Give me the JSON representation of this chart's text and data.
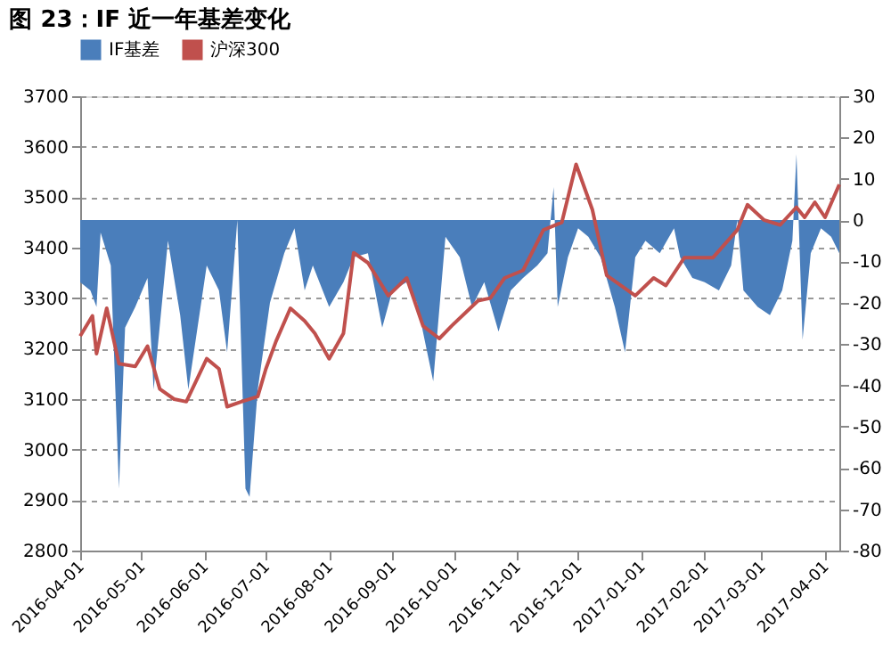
{
  "chart_data": {
    "type": "line",
    "title": "图 23：IF 近一年基差变化",
    "legend": "top",
    "grid": "y",
    "xlim": [
      "2016-04-01",
      "2017-04-08"
    ],
    "xticks": [
      "2016-04-01",
      "2016-05-01",
      "2016-06-01",
      "2016-07-01",
      "2016-08-01",
      "2016-09-01",
      "2016-10-01",
      "2016-11-01",
      "2016-12-01",
      "2017-01-01",
      "2017-02-01",
      "2017-03-01",
      "2017-04-01"
    ],
    "ylim": [
      2800,
      3700
    ],
    "yticks": [
      2800,
      2900,
      3000,
      3100,
      3200,
      3300,
      3400,
      3500,
      3600,
      3700
    ],
    "y2lim": [
      -80,
      30
    ],
    "y2ticks": [
      -80,
      -70,
      -60,
      -50,
      -40,
      -30,
      -20,
      -10,
      0,
      10,
      20,
      30
    ],
    "series": [
      {
        "name": "IF基差",
        "type": "area",
        "axis": "y2",
        "color": "#4a7ebb",
        "x": [
          "2016-04-01",
          "2016-04-06",
          "2016-04-09",
          "2016-04-11",
          "2016-04-16",
          "2016-04-20",
          "2016-04-23",
          "2016-04-28",
          "2016-05-04",
          "2016-05-07",
          "2016-05-14",
          "2016-05-20",
          "2016-05-24",
          "2016-06-02",
          "2016-06-08",
          "2016-06-12",
          "2016-06-17",
          "2016-06-21",
          "2016-06-23",
          "2016-06-27",
          "2016-07-03",
          "2016-07-10",
          "2016-07-15",
          "2016-07-20",
          "2016-07-24",
          "2016-08-01",
          "2016-08-08",
          "2016-08-13",
          "2016-08-20",
          "2016-08-27",
          "2016-09-01",
          "2016-09-08",
          "2016-09-13",
          "2016-09-21",
          "2016-09-27",
          "2016-10-04",
          "2016-10-10",
          "2016-10-16",
          "2016-10-23",
          "2016-10-29",
          "2016-11-04",
          "2016-11-11",
          "2016-11-16",
          "2016-11-19",
          "2016-11-21",
          "2016-11-26",
          "2016-12-01",
          "2016-12-06",
          "2016-12-12",
          "2016-12-19",
          "2016-12-24",
          "2016-12-29",
          "2017-01-03",
          "2017-01-10",
          "2017-01-17",
          "2017-01-20",
          "2017-01-26",
          "2017-02-01",
          "2017-02-08",
          "2017-02-14",
          "2017-02-17",
          "2017-02-20",
          "2017-02-27",
          "2017-03-05",
          "2017-03-11",
          "2017-03-16",
          "2017-03-18",
          "2017-03-21",
          "2017-03-25",
          "2017-03-30",
          "2017-04-04",
          "2017-04-08"
        ],
        "values": [
          -15,
          -17,
          -21,
          -3,
          -11,
          -65,
          -26,
          -21,
          -14,
          -41,
          -5,
          -23,
          -41,
          -11,
          -17,
          -32,
          0,
          -65,
          -67,
          -41,
          -20,
          -8,
          -2,
          -17,
          -11,
          -21,
          -15,
          -9,
          -8,
          -26,
          -17,
          -15,
          -20,
          -39,
          -4,
          -9,
          -21,
          -15,
          -27,
          -17,
          -14,
          -11,
          -8,
          8,
          -21,
          -9,
          -2,
          -4,
          -9,
          -21,
          -32,
          -9,
          -5,
          -8,
          -2,
          -9,
          -14,
          -15,
          -17,
          -11,
          0,
          -17,
          -21,
          -23,
          -17,
          -5,
          16,
          -29,
          -8,
          -2,
          -4,
          -8
        ]
      },
      {
        "name": "沪深300",
        "color": "#c0504d",
        "x": [
          "2016-04-01",
          "2016-04-07",
          "2016-04-09",
          "2016-04-14",
          "2016-04-20",
          "2016-04-28",
          "2016-05-04",
          "2016-05-10",
          "2016-05-17",
          "2016-05-23",
          "2016-06-02",
          "2016-06-08",
          "2016-06-12",
          "2016-06-19",
          "2016-06-27",
          "2016-07-01",
          "2016-07-06",
          "2016-07-13",
          "2016-07-20",
          "2016-07-25",
          "2016-08-01",
          "2016-08-08",
          "2016-08-13",
          "2016-08-20",
          "2016-08-30",
          "2016-09-08",
          "2016-09-16",
          "2016-09-24",
          "2016-09-30",
          "2016-10-13",
          "2016-10-19",
          "2016-10-26",
          "2016-11-04",
          "2016-11-14",
          "2016-11-23",
          "2016-11-30",
          "2016-12-08",
          "2016-12-15",
          "2016-12-29",
          "2017-01-07",
          "2017-01-13",
          "2017-01-22",
          "2017-02-05",
          "2017-02-17",
          "2017-02-22",
          "2017-03-02",
          "2017-03-10",
          "2017-03-18",
          "2017-03-22",
          "2017-03-27",
          "2017-04-01",
          "2017-04-08"
        ],
        "values": [
          3225,
          3265,
          3190,
          3280,
          3170,
          3165,
          3205,
          3120,
          3100,
          3095,
          3180,
          3160,
          3085,
          3095,
          3105,
          3160,
          3215,
          3280,
          3255,
          3230,
          3180,
          3230,
          3390,
          3370,
          3305,
          3340,
          3245,
          3220,
          3245,
          3295,
          3300,
          3340,
          3355,
          3435,
          3450,
          3565,
          3475,
          3345,
          3305,
          3340,
          3325,
          3380,
          3380,
          3435,
          3485,
          3455,
          3445,
          3480,
          3460,
          3490,
          3460,
          3525
        ]
      }
    ]
  }
}
